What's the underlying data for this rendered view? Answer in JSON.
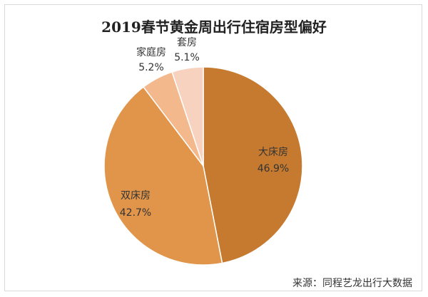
{
  "chart_data": {
    "type": "pie",
    "title": "2019春节黄金周出行住宿房型偏好",
    "slices": [
      {
        "name": "大床房",
        "value": 46.9,
        "label": "46.9%",
        "color": "#c57a30"
      },
      {
        "name": "双床房",
        "value": 42.7,
        "label": "42.7%",
        "color": "#e0954a"
      },
      {
        "name": "家庭房",
        "value": 5.2,
        "label": "5.2%",
        "color": "#f3b98d"
      },
      {
        "name": "套房",
        "value": 5.1,
        "label": "5.1%",
        "color": "#f7d2be"
      }
    ],
    "legend": "none",
    "source": "来源：同程艺龙出行大数据"
  }
}
